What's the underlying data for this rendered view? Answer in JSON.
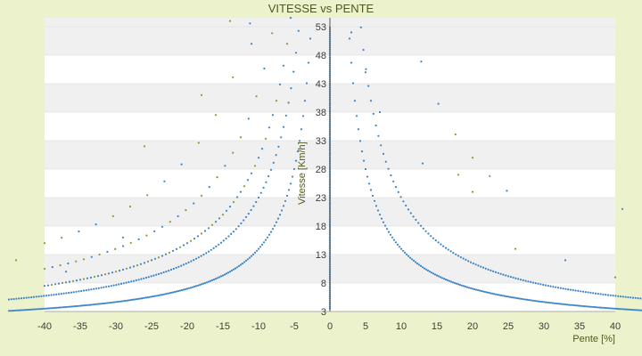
{
  "chart_data": {
    "type": "scatter",
    "title": "VITESSE vs PENTE",
    "xlabel": "Pente [%]",
    "ylabel": "Vitesse [Km/h]",
    "xlim": [
      -40,
      40
    ],
    "ylim": [
      3,
      58
    ],
    "x_ticks": [
      "-40",
      "-35",
      "-30",
      "-25",
      "-20",
      "-15",
      "-10",
      "-5",
      "0",
      "5",
      "10",
      "15",
      "20",
      "25",
      "30",
      "35",
      "40"
    ],
    "y_ticks": [
      "3",
      "8",
      "13",
      "18",
      "23",
      "28",
      "33",
      "38",
      "43",
      "48",
      "53"
    ],
    "grid": true,
    "legend": "none",
    "colors": {
      "background": "#ecf2cc",
      "plot_band_light": "#ffffff",
      "plot_band_dark": "#f0f0f0",
      "series_main": "#3d85c6",
      "series_accent": "#8c9a2c",
      "text": "#4f5a1a"
    },
    "series": [
      {
        "curve": "v = 140 / |pente|",
        "x_range": [
          -45,
          45
        ],
        "note_visible": ""
      },
      {
        "curve": "v = 230 / |pente|",
        "x_range": [
          -45,
          45
        ]
      },
      {
        "curve": "v = 300 / |pente|",
        "x_range": [
          -45,
          -5
        ]
      },
      {
        "curve": "v = 420 / |pente|",
        "x_range": [
          -40,
          -8
        ]
      },
      {
        "curve": "v = 600 / |pente|",
        "x_range": [
          -40,
          25
        ]
      },
      {
        "curve": "x = 0",
        "y_range": [
          3,
          53
        ]
      }
    ]
  }
}
